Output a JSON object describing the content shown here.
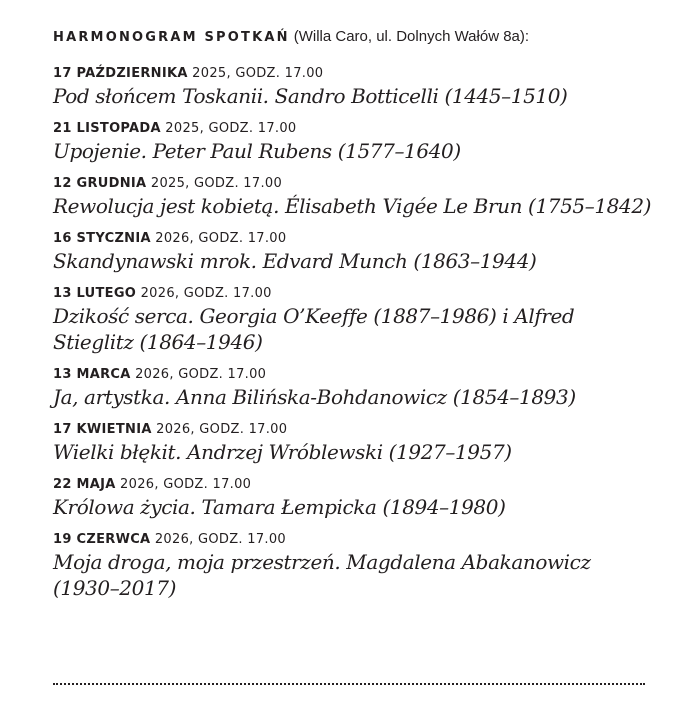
{
  "header": {
    "title": "HARMONOGRAM SPOTKAŃ",
    "location": "(Willa Caro, ul. Dolnych Wałów 8a):"
  },
  "entries": [
    {
      "date": "17 PAŹDZIERNIKA",
      "rest": " 2025, GODZ. 17.00",
      "title": "Pod słońcem Toskanii. Sandro Botticelli (1445–1510)"
    },
    {
      "date": "21 LISTOPADA",
      "rest": " 2025, GODZ. 17.00",
      "title": "Upojenie. Peter Paul Rubens (1577–1640)"
    },
    {
      "date": "12 GRUDNIA",
      "rest": " 2025, GODZ. 17.00",
      "title": "Rewolucja jest kobietą. Élisabeth Vigée Le Brun (1755–1842)"
    },
    {
      "date": "16 STYCZNIA",
      "rest": " 2026, GODZ. 17.00",
      "title": "Skandynawski mrok. Edvard Munch (1863–1944)"
    },
    {
      "date": "13 LUTEGO",
      "rest": " 2026, GODZ. 17.00",
      "title": "Dzikość serca. Georgia O’Keeffe (1887–1986) i Alfred Stieglitz (1864–1946)"
    },
    {
      "date": "13 MARCA",
      "rest": " 2026, GODZ. 17.00",
      "title": "Ja, artystka. Anna Bilińska-Bohdanowicz (1854–1893)"
    },
    {
      "date": "17 KWIETNIA",
      "rest": " 2026, GODZ. 17.00",
      "title": "Wielki błękit. Andrzej Wróblewski (1927–1957)"
    },
    {
      "date": "22 MAJA",
      "rest": " 2026, GODZ. 17.00",
      "title": "Królowa życia. Tamara Łempicka (1894–1980)"
    },
    {
      "date": "19 CZERWCA",
      "rest": " 2026, GODZ. 17.00",
      "title": "Moja droga, moja przestrzeń. Magdalena Abakanowicz (1930–2017)"
    }
  ]
}
